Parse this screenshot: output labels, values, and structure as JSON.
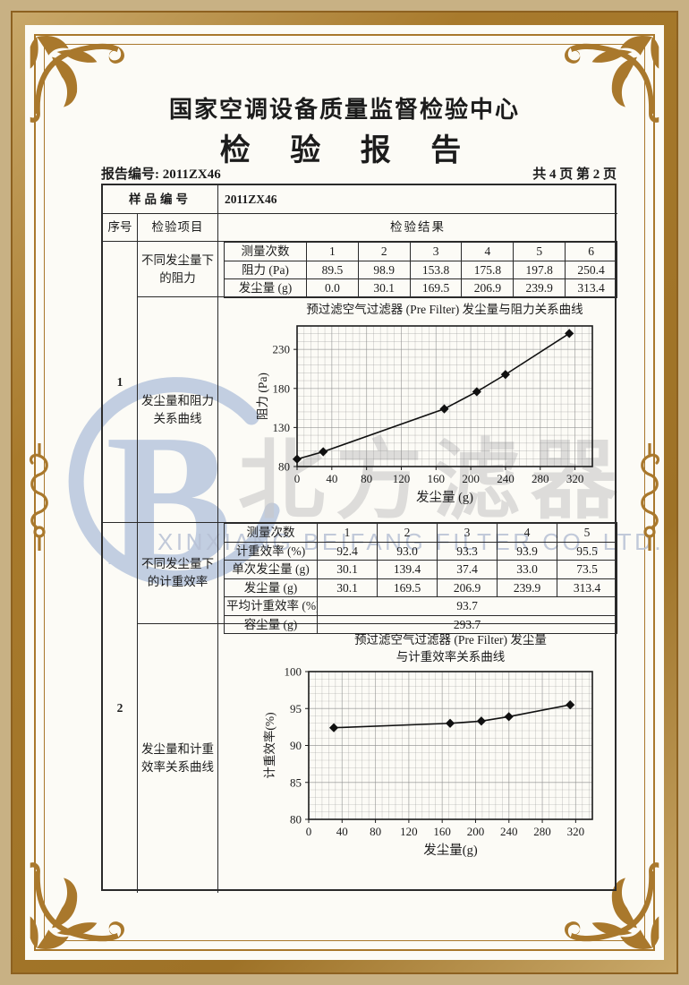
{
  "watermark": {
    "logo_letter": "B",
    "cn": "北方滤器",
    "en": "XINXIANG BEIFANG FILTER CO.,LTD."
  },
  "header": {
    "org": "国家空调设备质量监督检验中心",
    "title": "检 验 报 告"
  },
  "meta": {
    "report_no": "报告编号: 2011ZX46",
    "pages": "共 4 页 第 2 页"
  },
  "table": {
    "sample_label": "样品编号",
    "sample_value": "2011ZX46",
    "col_seq": "序号",
    "col_item": "检验项目",
    "col_result": "检验结果"
  },
  "sections": [
    {
      "seq": "1",
      "item_top": "不同发尘量下的阻力",
      "item_bottom": "发尘量和阻力关系曲线",
      "measure_table": {
        "rows": [
          {
            "label": "测量次数",
            "values": [
              "1",
              "2",
              "3",
              "4",
              "5",
              "6"
            ]
          },
          {
            "label": "阻力 (Pa)",
            "values": [
              "89.5",
              "98.9",
              "153.8",
              "175.8",
              "197.8",
              "250.4"
            ]
          },
          {
            "label": "发尘量 (g)",
            "values": [
              "0.0",
              "30.1",
              "169.5",
              "206.9",
              "239.9",
              "313.4"
            ]
          }
        ],
        "merged": []
      }
    },
    {
      "seq": "2",
      "item_top": "不同发尘量下的计重效率",
      "item_bottom": "发尘量和计重效率关系曲线",
      "measure_table": {
        "rows": [
          {
            "label": "测量次数",
            "values": [
              "1",
              "2",
              "3",
              "4",
              "5"
            ]
          },
          {
            "label": "计重效率 (%)",
            "values": [
              "92.4",
              "93.0",
              "93.3",
              "93.9",
              "95.5"
            ]
          },
          {
            "label": "单次发尘量 (g)",
            "values": [
              "30.1",
              "139.4",
              "37.4",
              "33.0",
              "73.5"
            ]
          },
          {
            "label": "发尘量 (g)",
            "values": [
              "30.1",
              "169.5",
              "206.9",
              "239.9",
              "313.4"
            ]
          }
        ],
        "merged": [
          {
            "label": "平均计重效率 (%)",
            "value": "93.7"
          },
          {
            "label": "容尘量 (g)",
            "value": "293.7"
          }
        ]
      }
    }
  ],
  "chart_data": [
    {
      "type": "line",
      "title_lines": [
        "预过滤空气过滤器 (Pre Filter) 发尘量与阻力关系曲线"
      ],
      "xlabel": "发尘量 (g)",
      "ylabel": "阻力 (Pa)",
      "x": [
        0,
        30.1,
        169.5,
        206.9,
        239.9,
        313.4
      ],
      "y": [
        89.5,
        98.9,
        153.8,
        175.8,
        197.8,
        250.4
      ],
      "xlim": [
        0,
        340
      ],
      "ylim": [
        80,
        260
      ],
      "xticks": [
        0,
        40,
        80,
        120,
        160,
        200,
        240,
        280,
        320
      ],
      "yticks": [
        80,
        130,
        180,
        230
      ],
      "grid": true,
      "marker": "diamond",
      "line_color": "#101010"
    },
    {
      "type": "line",
      "title_lines": [
        "预过滤空气过滤器 (Pre Filter) 发尘量",
        "与计重效率关系曲线"
      ],
      "xlabel": "发尘量(g)",
      "ylabel": "计重效率(%)",
      "x": [
        30.1,
        169.5,
        206.9,
        239.9,
        313.4
      ],
      "y": [
        92.4,
        93.0,
        93.3,
        93.9,
        95.5
      ],
      "xlim": [
        0,
        340
      ],
      "ylim": [
        80,
        100
      ],
      "xticks": [
        0,
        40,
        80,
        120,
        160,
        200,
        240,
        280,
        320
      ],
      "yticks": [
        80,
        85,
        90,
        95,
        100
      ],
      "grid": true,
      "marker": "diamond",
      "line_color": "#101010"
    }
  ],
  "frame": {
    "gold": "#a9782c",
    "logo_blue": "#bccadf"
  }
}
